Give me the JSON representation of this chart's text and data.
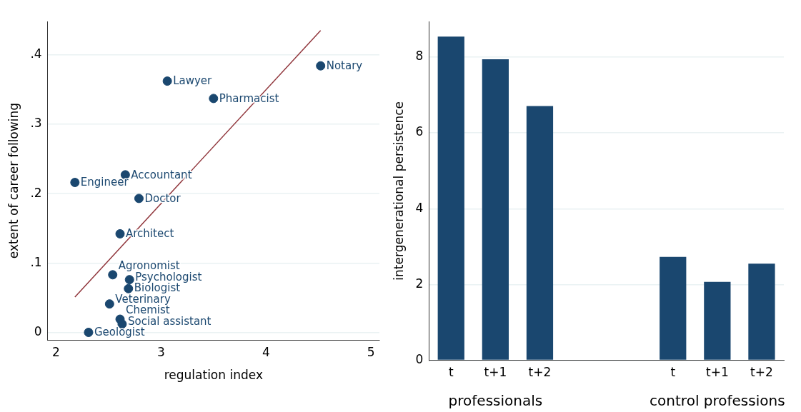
{
  "chart_data": [
    {
      "type": "scatter",
      "xlabel": "regulation index",
      "ylabel": "extent of career following",
      "grid": "y",
      "legend": false,
      "xlim": [
        1.92,
        5.08
      ],
      "xticks": [
        2,
        3,
        4,
        5
      ],
      "ylim": [
        -0.011,
        0.448
      ],
      "yticks": [
        0,
        {
          "value": 0.1,
          "label": ".1"
        },
        {
          "value": 0.2,
          "label": ".2"
        },
        {
          "value": 0.3,
          "label": ".3"
        },
        {
          "value": 0.4,
          "label": ".4"
        }
      ],
      "series": [
        {
          "type": "scatter",
          "marker": "circle",
          "color": "#1a476f",
          "x": [
            4.52,
            3.06,
            3.5,
            2.66,
            2.18,
            2.79,
            2.61,
            2.54,
            2.7,
            2.69,
            2.51,
            2.61,
            2.63,
            2.31
          ],
          "values": [
            0.384,
            0.362,
            0.337,
            0.227,
            0.216,
            0.193,
            0.142,
            0.083,
            0.076,
            0.063,
            0.041,
            0.019,
            0.012,
            0
          ]
        },
        {
          "type": "line",
          "color": "#90353b",
          "x": [
            2.18,
            4.52
          ],
          "values": [
            0.051,
            0.435
          ]
        }
      ],
      "annotations": [
        {
          "text": "Notary",
          "x": 4.52,
          "y": 0.384
        },
        {
          "text": "Lawyer",
          "x": 3.06,
          "y": 0.362
        },
        {
          "text": "Pharmacist",
          "x": 3.5,
          "y": 0.337
        },
        {
          "text": "Accountant",
          "x": 2.66,
          "y": 0.227
        },
        {
          "text": "Engineer",
          "x": 2.18,
          "y": 0.216
        },
        {
          "text": "Doctor",
          "x": 2.79,
          "y": 0.193
        },
        {
          "text": "Architect",
          "x": 2.61,
          "y": 0.142
        },
        {
          "text": "Agronomist",
          "x": 2.54,
          "y": 0.083
        },
        {
          "text": "Psychologist",
          "x": 2.7,
          "y": 0.076
        },
        {
          "text": "Biologist",
          "x": 2.69,
          "y": 0.063
        },
        {
          "text": "Veterinary",
          "x": 2.51,
          "y": 0.041
        },
        {
          "text": "Chemist",
          "x": 2.61,
          "y": 0.019
        },
        {
          "text": "Social assistant",
          "x": 2.63,
          "y": 0.012
        },
        {
          "text": "Geologist",
          "x": 2.31,
          "y": 0
        }
      ]
    },
    {
      "type": "bar",
      "ylabel": "intergenerational persistence",
      "grid": "y",
      "legend": false,
      "color": "#1a476f",
      "categories": [
        "t",
        "t+1",
        "t+2",
        null,
        null,
        "t",
        "t+1",
        "t+2"
      ],
      "values": [
        8.54,
        7.94,
        6.71,
        null,
        null,
        2.73,
        2.07,
        2.55
      ],
      "ylim": [
        0,
        8.94
      ],
      "yticks": [
        0,
        2,
        4,
        6,
        8
      ],
      "annotations": [
        "professionals",
        "control professions"
      ]
    }
  ]
}
